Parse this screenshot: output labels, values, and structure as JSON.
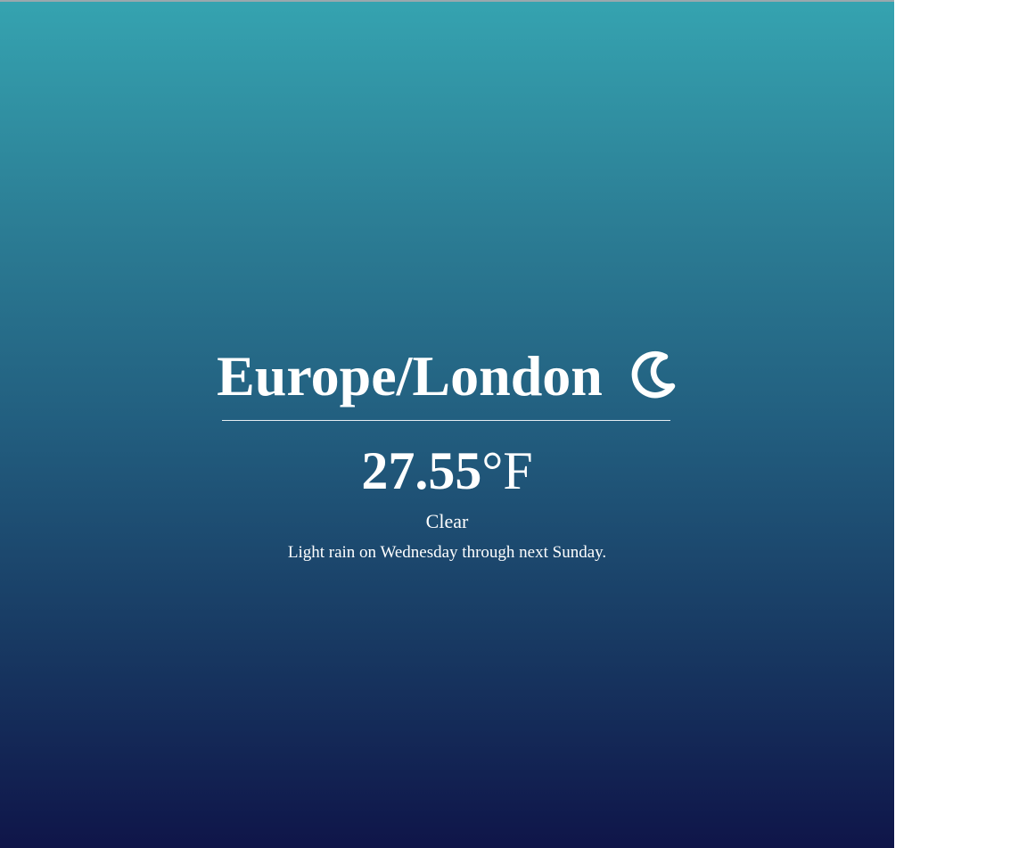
{
  "location": {
    "timezone": "Europe/London",
    "icon": "clear-night-moon-icon"
  },
  "current": {
    "temperature": "27.55",
    "unit": "°F",
    "summary": "Clear"
  },
  "forecast": {
    "text": "Light rain on Wednesday through next Sunday."
  },
  "colors": {
    "gradient_top": "#35a3b0",
    "gradient_bottom": "#0f1549",
    "text": "#ffffff"
  }
}
